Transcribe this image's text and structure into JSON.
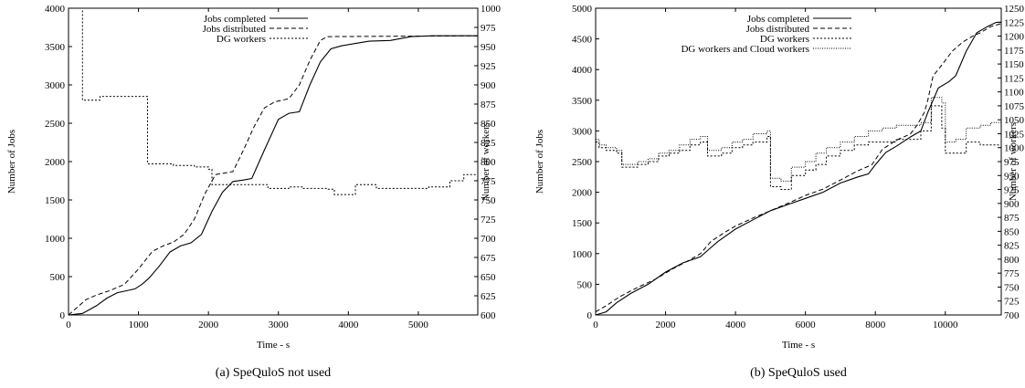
{
  "chart_data": [
    {
      "type": "line",
      "caption": "(a) SpeQuloS not used",
      "xlabel": "Time - s",
      "ylabel": "Number of Jobs",
      "y2label": "Number of workers",
      "xlim": [
        0,
        5850
      ],
      "ylim": [
        0,
        4000
      ],
      "y2lim": [
        600,
        1000
      ],
      "xticks": [
        "0",
        "1000",
        "2000",
        "3000",
        "4000",
        "5000"
      ],
      "xtick_values": [
        0,
        1000,
        2000,
        3000,
        4000,
        5000
      ],
      "yticks": [
        "0",
        "500",
        "1000",
        "1500",
        "2000",
        "2500",
        "3000",
        "3500",
        "4000"
      ],
      "ytick_values": [
        0,
        500,
        1000,
        1500,
        2000,
        2500,
        3000,
        3500,
        4000
      ],
      "y2ticks": [
        "600",
        "625",
        "650",
        "675",
        "700",
        "725",
        "750",
        "775",
        "800",
        "825",
        "850",
        "875",
        "900",
        "925",
        "950",
        "975",
        "1000"
      ],
      "y2tick_values": [
        600,
        625,
        650,
        675,
        700,
        725,
        750,
        775,
        800,
        825,
        850,
        875,
        900,
        925,
        950,
        975,
        1000
      ],
      "legend_position": "top-right",
      "series": [
        {
          "name": "Jobs completed",
          "style": "solid",
          "axis": "y",
          "step": false,
          "points": [
            [
              0,
              0
            ],
            [
              200,
              20
            ],
            [
              400,
              120
            ],
            [
              550,
              220
            ],
            [
              700,
              290
            ],
            [
              850,
              320
            ],
            [
              950,
              340
            ],
            [
              1050,
              400
            ],
            [
              1150,
              480
            ],
            [
              1300,
              640
            ],
            [
              1450,
              820
            ],
            [
              1600,
              900
            ],
            [
              1750,
              940
            ],
            [
              1900,
              1050
            ],
            [
              2050,
              1350
            ],
            [
              2200,
              1600
            ],
            [
              2350,
              1740
            ],
            [
              2500,
              1760
            ],
            [
              2620,
              1780
            ],
            [
              2800,
              2150
            ],
            [
              3000,
              2550
            ],
            [
              3150,
              2630
            ],
            [
              3300,
              2650
            ],
            [
              3450,
              3000
            ],
            [
              3600,
              3300
            ],
            [
              3750,
              3470
            ],
            [
              3900,
              3510
            ],
            [
              4100,
              3540
            ],
            [
              4300,
              3570
            ],
            [
              4600,
              3580
            ],
            [
              4900,
              3630
            ],
            [
              5200,
              3640
            ],
            [
              5850,
              3640
            ]
          ]
        },
        {
          "name": "Jobs distributed",
          "style": "dashed",
          "axis": "y",
          "step": false,
          "points": [
            [
              0,
              0
            ],
            [
              100,
              80
            ],
            [
              250,
              200
            ],
            [
              400,
              260
            ],
            [
              600,
              320
            ],
            [
              800,
              400
            ],
            [
              1000,
              600
            ],
            [
              1200,
              830
            ],
            [
              1350,
              900
            ],
            [
              1500,
              950
            ],
            [
              1650,
              1050
            ],
            [
              1800,
              1250
            ],
            [
              1950,
              1580
            ],
            [
              2100,
              1830
            ],
            [
              2350,
              1870
            ],
            [
              2500,
              2150
            ],
            [
              2650,
              2450
            ],
            [
              2800,
              2700
            ],
            [
              2950,
              2780
            ],
            [
              3150,
              2820
            ],
            [
              3300,
              3000
            ],
            [
              3450,
              3320
            ],
            [
              3600,
              3580
            ],
            [
              3700,
              3630
            ],
            [
              5850,
              3640
            ]
          ]
        },
        {
          "name": "DG workers",
          "style": "dotted",
          "axis": "y2",
          "step": true,
          "points": [
            [
              180,
              1000
            ],
            [
              200,
              880
            ],
            [
              450,
              885
            ],
            [
              1120,
              885
            ],
            [
              1130,
              797
            ],
            [
              1500,
              795
            ],
            [
              1800,
              793
            ],
            [
              2000,
              790
            ],
            [
              2050,
              770
            ],
            [
              2700,
              770
            ],
            [
              2850,
              765
            ],
            [
              3150,
              767
            ],
            [
              3350,
              765
            ],
            [
              3700,
              764
            ],
            [
              3800,
              757
            ],
            [
              4050,
              757
            ],
            [
              4100,
              770
            ],
            [
              4400,
              765
            ],
            [
              4700,
              765
            ],
            [
              5000,
              765
            ],
            [
              5150,
              767
            ],
            [
              5450,
              775
            ],
            [
              5650,
              783
            ],
            [
              5850,
              783
            ]
          ]
        }
      ]
    },
    {
      "type": "line",
      "caption": "(b) SpeQuloS used",
      "xlabel": "Time - s",
      "ylabel": "Number of Jobs",
      "y2label": "Number of workers",
      "xlim": [
        0,
        11600
      ],
      "ylim": [
        0,
        5000
      ],
      "y2lim": [
        700,
        1250
      ],
      "xticks": [
        "0",
        "2000",
        "4000",
        "6000",
        "8000",
        "10000"
      ],
      "xtick_values": [
        0,
        2000,
        4000,
        6000,
        8000,
        10000
      ],
      "yticks": [
        "0",
        "500",
        "1000",
        "1500",
        "2000",
        "2500",
        "3000",
        "3500",
        "4000",
        "4500",
        "5000"
      ],
      "ytick_values": [
        0,
        500,
        1000,
        1500,
        2000,
        2500,
        3000,
        3500,
        4000,
        4500,
        5000
      ],
      "y2ticks": [
        "700",
        "725",
        "750",
        "775",
        "800",
        "825",
        "850",
        "875",
        "900",
        "925",
        "950",
        "975",
        "1000",
        "1025",
        "1050",
        "1075",
        "1100",
        "1125",
        "1150",
        "1175",
        "1200",
        "1225",
        "1250"
      ],
      "y2tick_values": [
        700,
        725,
        750,
        775,
        800,
        825,
        850,
        875,
        900,
        925,
        950,
        975,
        1000,
        1025,
        1050,
        1075,
        1100,
        1125,
        1150,
        1175,
        1200,
        1225,
        1250
      ],
      "legend_position": "top-right",
      "series": [
        {
          "name": "Jobs completed",
          "style": "solid",
          "axis": "y",
          "step": false,
          "points": [
            [
              0,
              0
            ],
            [
              300,
              50
            ],
            [
              600,
              200
            ],
            [
              1000,
              350
            ],
            [
              1500,
              500
            ],
            [
              2000,
              700
            ],
            [
              2500,
              850
            ],
            [
              3000,
              950
            ],
            [
              3200,
              1050
            ],
            [
              3500,
              1200
            ],
            [
              4000,
              1400
            ],
            [
              4500,
              1550
            ],
            [
              5000,
              1700
            ],
            [
              5500,
              1800
            ],
            [
              6000,
              1900
            ],
            [
              6500,
              2000
            ],
            [
              7000,
              2150
            ],
            [
              7500,
              2250
            ],
            [
              7800,
              2300
            ],
            [
              8000,
              2450
            ],
            [
              8300,
              2650
            ],
            [
              8600,
              2750
            ],
            [
              9000,
              2900
            ],
            [
              9300,
              3000
            ],
            [
              9500,
              3300
            ],
            [
              9800,
              3700
            ],
            [
              10100,
              3800
            ],
            [
              10300,
              3900
            ],
            [
              10600,
              4300
            ],
            [
              10900,
              4600
            ],
            [
              11200,
              4700
            ],
            [
              11450,
              4770
            ],
            [
              11600,
              4770
            ]
          ]
        },
        {
          "name": "Jobs distributed",
          "style": "dashed",
          "axis": "y",
          "step": false,
          "points": [
            [
              0,
              50
            ],
            [
              300,
              150
            ],
            [
              700,
              300
            ],
            [
              1200,
              450
            ],
            [
              1700,
              580
            ],
            [
              2200,
              750
            ],
            [
              2700,
              900
            ],
            [
              3000,
              1000
            ],
            [
              3300,
              1200
            ],
            [
              3700,
              1350
            ],
            [
              4000,
              1450
            ],
            [
              4500,
              1580
            ],
            [
              5000,
              1700
            ],
            [
              5500,
              1820
            ],
            [
              6000,
              1950
            ],
            [
              6500,
              2050
            ],
            [
              7000,
              2200
            ],
            [
              7500,
              2350
            ],
            [
              7900,
              2450
            ],
            [
              8200,
              2700
            ],
            [
              8600,
              2850
            ],
            [
              9000,
              2950
            ],
            [
              9200,
              3100
            ],
            [
              9400,
              3300
            ],
            [
              9500,
              3500
            ],
            [
              9650,
              3900
            ],
            [
              9800,
              4000
            ],
            [
              10000,
              4150
            ],
            [
              10200,
              4300
            ],
            [
              10500,
              4450
            ],
            [
              10800,
              4550
            ],
            [
              11000,
              4600
            ],
            [
              11300,
              4700
            ],
            [
              11600,
              4750
            ]
          ]
        },
        {
          "name": "DG workers",
          "style": "dotted",
          "axis": "y2",
          "step": true,
          "points": [
            [
              0,
              1010
            ],
            [
              100,
              1000
            ],
            [
              300,
              995
            ],
            [
              600,
              990
            ],
            [
              750,
              965
            ],
            [
              1200,
              970
            ],
            [
              1500,
              975
            ],
            [
              1800,
              985
            ],
            [
              2100,
              990
            ],
            [
              2400,
              995
            ],
            [
              2700,
              1005
            ],
            [
              3000,
              1010
            ],
            [
              3200,
              985
            ],
            [
              3600,
              990
            ],
            [
              3900,
              1000
            ],
            [
              4200,
              1005
            ],
            [
              4500,
              1010
            ],
            [
              4900,
              1020
            ],
            [
              5000,
              930
            ],
            [
              5300,
              925
            ],
            [
              5600,
              950
            ],
            [
              6000,
              960
            ],
            [
              6300,
              970
            ],
            [
              6600,
              985
            ],
            [
              7000,
              995
            ],
            [
              7400,
              1005
            ],
            [
              7800,
              1010
            ],
            [
              8200,
              1010
            ],
            [
              8600,
              1015
            ],
            [
              9000,
              1015
            ],
            [
              9300,
              1030
            ],
            [
              9600,
              1075
            ],
            [
              9900,
              1035
            ],
            [
              10000,
              990
            ],
            [
              10300,
              990
            ],
            [
              10600,
              1010
            ],
            [
              11000,
              1005
            ],
            [
              11300,
              1005
            ],
            [
              11600,
              1005
            ]
          ]
        },
        {
          "name": "DG workers and Cloud workers",
          "style": "dotted-fine",
          "axis": "y2",
          "step": true,
          "points": [
            [
              0,
              1015
            ],
            [
              100,
              1005
            ],
            [
              300,
              1000
            ],
            [
              600,
              995
            ],
            [
              750,
              970
            ],
            [
              1200,
              975
            ],
            [
              1500,
              980
            ],
            [
              1800,
              990
            ],
            [
              2100,
              995
            ],
            [
              2400,
              1005
            ],
            [
              2700,
              1015
            ],
            [
              3000,
              1020
            ],
            [
              3200,
              995
            ],
            [
              3600,
              1000
            ],
            [
              3900,
              1010
            ],
            [
              4200,
              1015
            ],
            [
              4500,
              1025
            ],
            [
              4900,
              1030
            ],
            [
              5000,
              945
            ],
            [
              5300,
              940
            ],
            [
              5600,
              965
            ],
            [
              6000,
              975
            ],
            [
              6300,
              990
            ],
            [
              6600,
              1000
            ],
            [
              7000,
              1010
            ],
            [
              7400,
              1020
            ],
            [
              7800,
              1030
            ],
            [
              8200,
              1035
            ],
            [
              8600,
              1040
            ],
            [
              9000,
              1040
            ],
            [
              9300,
              1045
            ],
            [
              9600,
              1090
            ],
            [
              9900,
              1080
            ],
            [
              10000,
              1010
            ],
            [
              10300,
              1015
            ],
            [
              10600,
              1035
            ],
            [
              11000,
              1040
            ],
            [
              11300,
              1045
            ],
            [
              11600,
              1045
            ]
          ]
        }
      ]
    }
  ]
}
